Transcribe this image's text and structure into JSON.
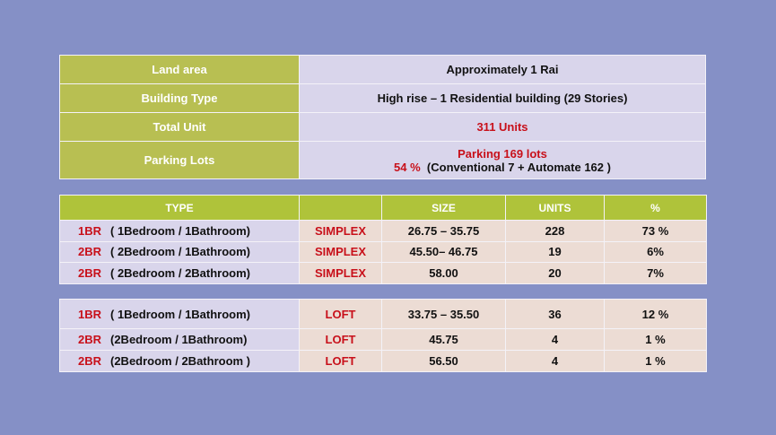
{
  "summary": [
    {
      "label": "Land area",
      "value": "Approximately 1 Rai"
    },
    {
      "label": "Building Type",
      "value": "High rise – 1 Residential building (29 Stories)"
    },
    {
      "label": "Total Unit",
      "value": "311 Units"
    },
    {
      "label": "Parking Lots",
      "value_line1": "Parking 169 lots",
      "value_pct": "54 %",
      "value_line2": "(Conventional 7 + Automate 162 )"
    }
  ],
  "units_table": {
    "headers": [
      "TYPE",
      "",
      "SIZE",
      "UNITS",
      "%"
    ],
    "simplex_rows": [
      {
        "code": "1BR",
        "desc": "( 1Bedroom / 1Bathroom)",
        "style": "SIMPLEX",
        "size": "26.75 – 35.75",
        "units": "228",
        "pct": "73 %"
      },
      {
        "code": "2BR",
        "desc": "( 2Bedroom / 1Bathroom)",
        "style": "SIMPLEX",
        "size": "45.50– 46.75",
        "units": "19",
        "pct": "6%"
      },
      {
        "code": "2BR",
        "desc": "( 2Bedroom / 2Bathroom)",
        "style": "SIMPLEX",
        "size": "58.00",
        "units": "20",
        "pct": "7%"
      }
    ],
    "loft_rows": [
      {
        "code": "1BR",
        "desc": "( 1Bedroom / 1Bathroom)",
        "style": "LOFT",
        "size": "33.75 – 35.50",
        "units": "36",
        "pct": "12 %"
      },
      {
        "code": "2BR",
        "desc": "(2Bedroom / 1Bathroom)",
        "style": "LOFT",
        "size": "45.75",
        "units": "4",
        "pct": "1 %"
      },
      {
        "code": "2BR",
        "desc": "(2Bedroom / 2Bathroom )",
        "style": "LOFT",
        "size": "56.50",
        "units": "4",
        "pct": "1 %"
      }
    ]
  },
  "colors": {
    "background": "#8590c6",
    "label_green": "#b8bf52",
    "header_green": "#afc33a",
    "lavender": "#d9d5eb",
    "peach": "#ecdcd4",
    "accent_red": "#c8101a"
  }
}
